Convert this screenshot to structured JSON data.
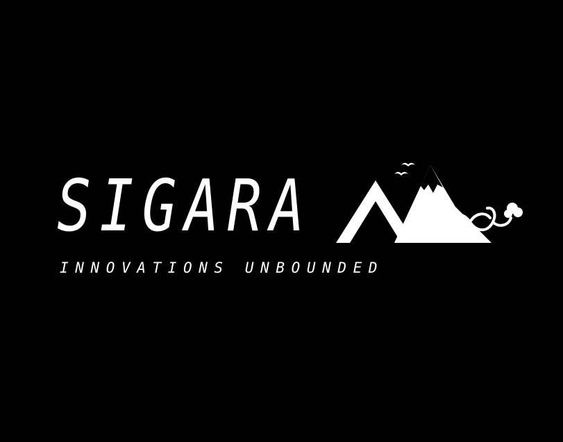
{
  "logo": {
    "wordmark": "SIGARA",
    "tagline": "INNOVATIONS UNBOUNDED",
    "icon": "mountains-infinity-icon"
  },
  "colors": {
    "background": "#000000",
    "foreground": "#ffffff"
  }
}
